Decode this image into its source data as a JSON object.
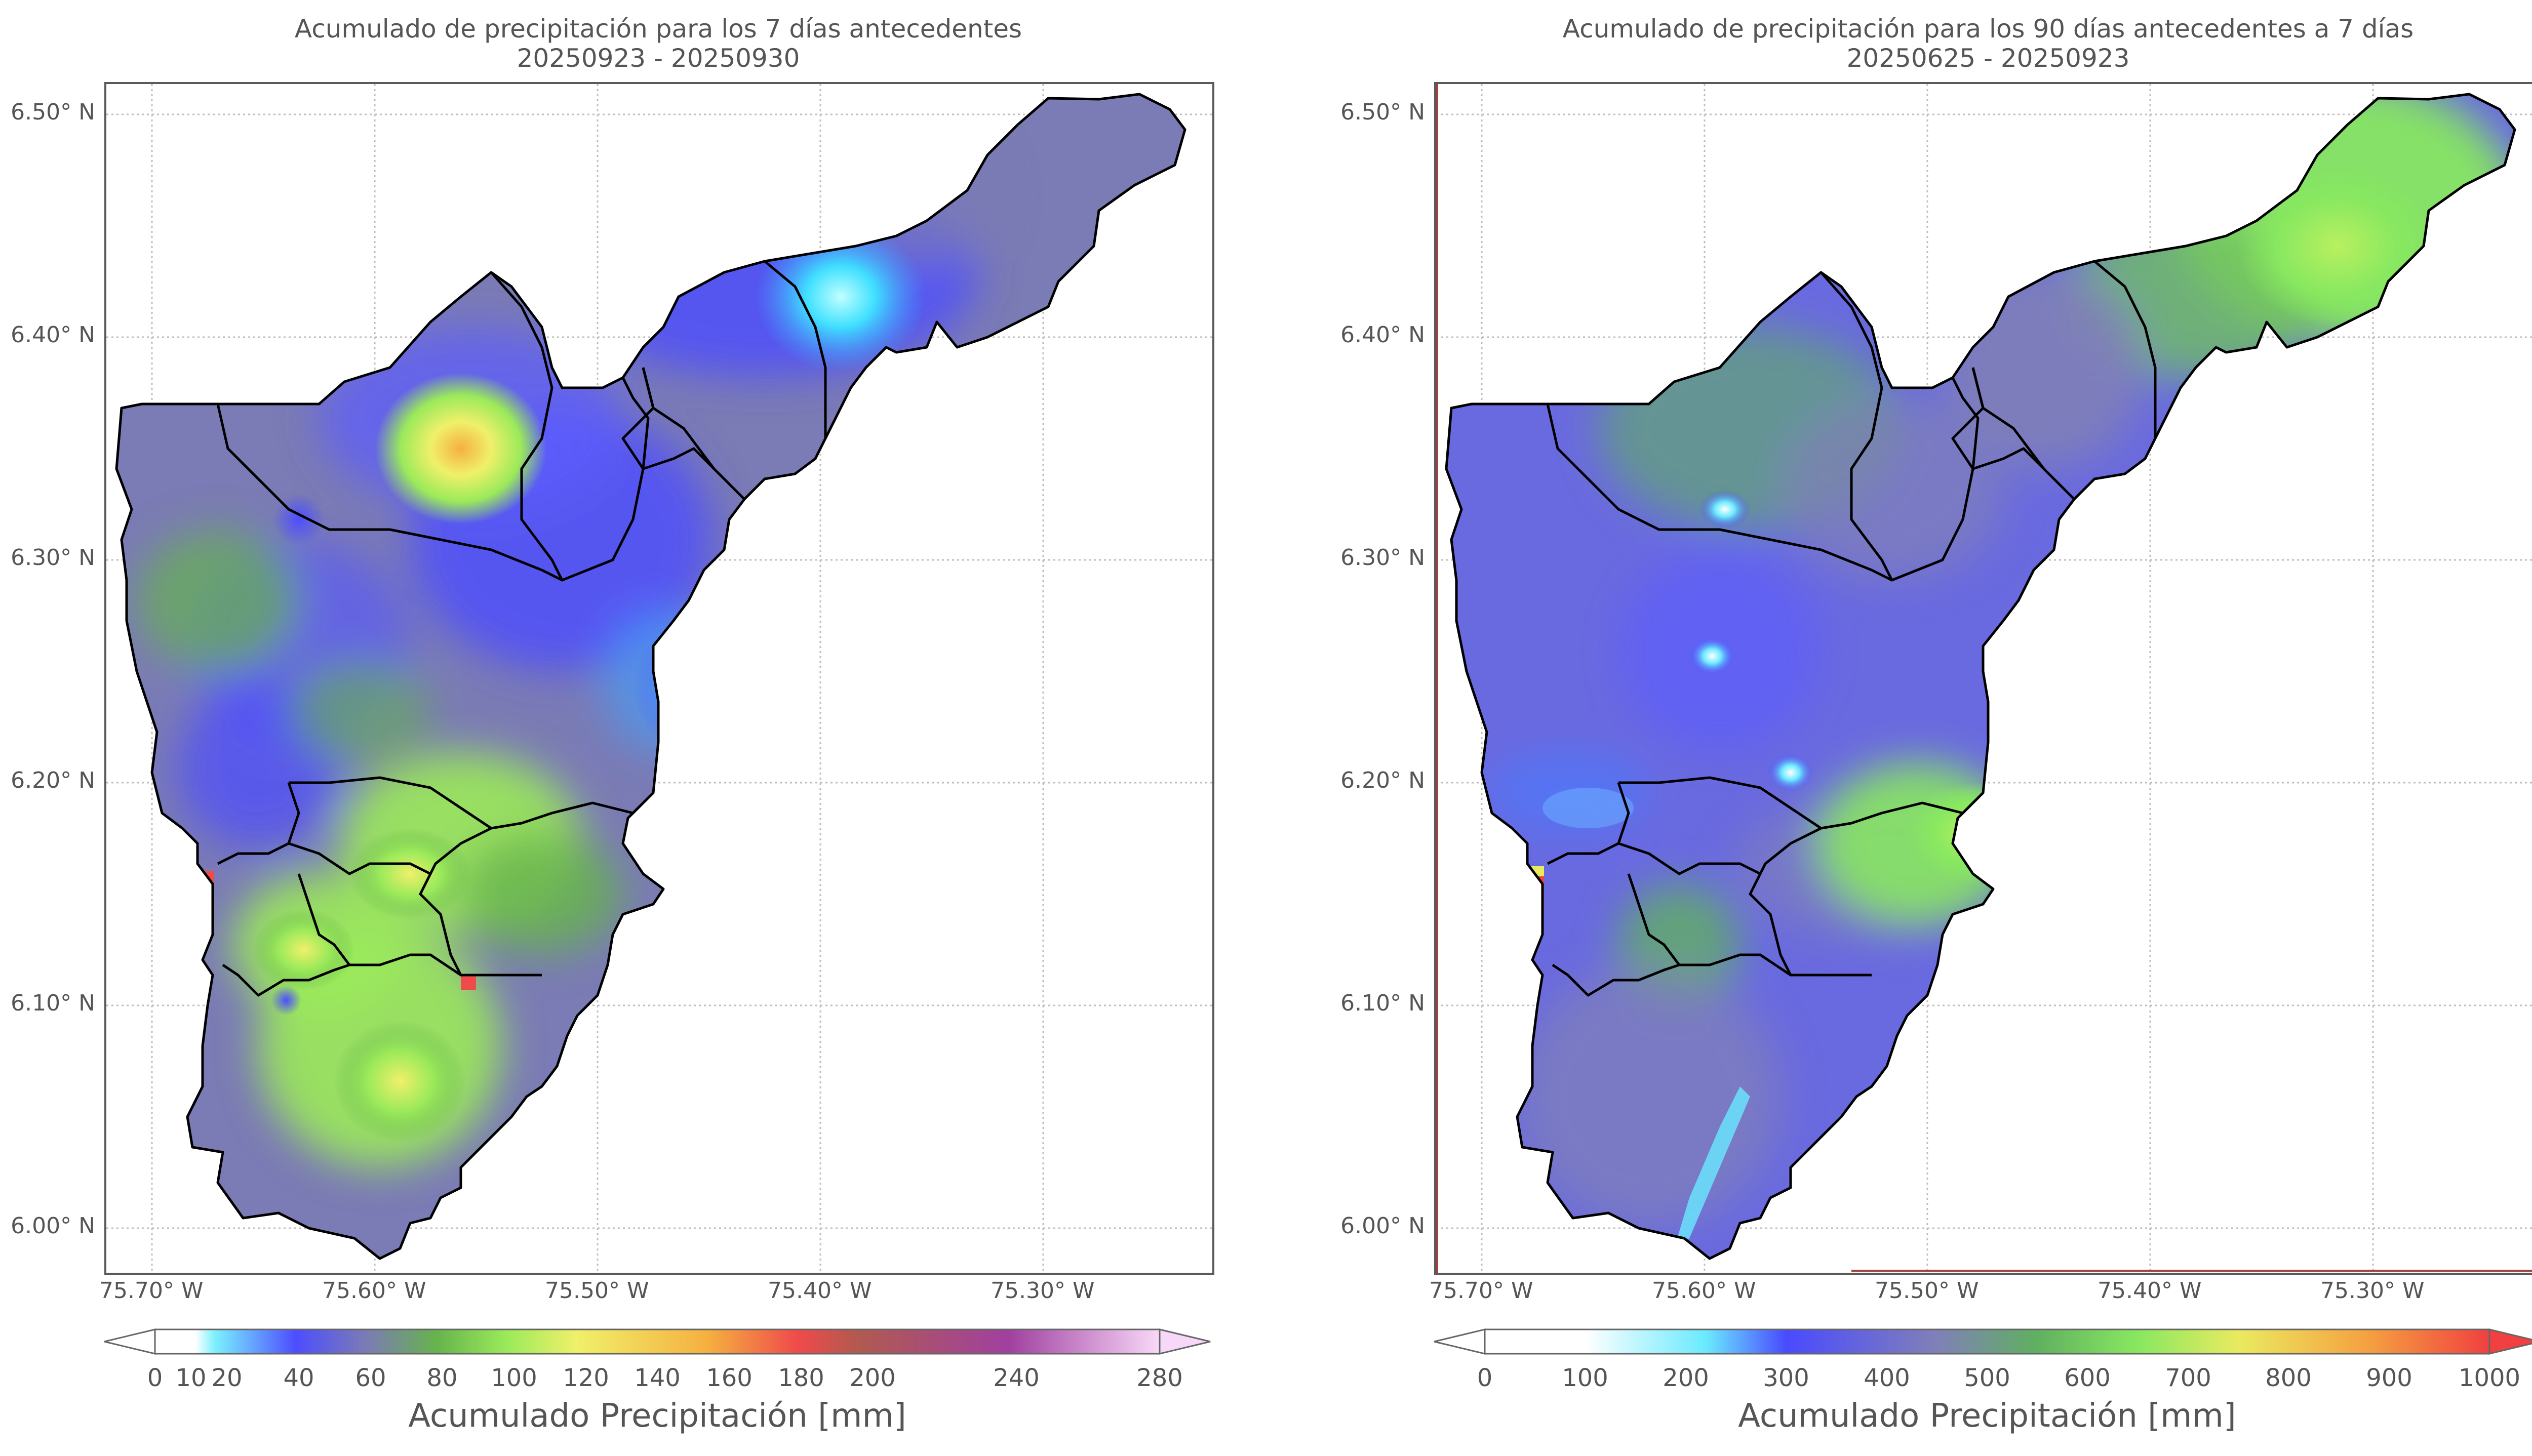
{
  "colors": {
    "boundary": "#000000",
    "grid": "#bdbdbd",
    "frame": "#5a5a5a",
    "ramp7": [
      "#ffffff",
      "#7af0ff",
      "#4d4dff",
      "#7b7bb5",
      "#66b34d",
      "#9bea5a",
      "#f0f06a",
      "#f5b040",
      "#f04a4a",
      "#b05a50",
      "#a040a0",
      "#f8d8f8"
    ],
    "ramp90": [
      "#ffffff",
      "#6aeaff",
      "#4a4aff",
      "#8080b8",
      "#60b060",
      "#88e860",
      "#eaea60",
      "#f5a040",
      "#f04040"
    ]
  },
  "left": {
    "title_line1": "Acumulado de precipitación para los 7 días antecedentes",
    "title_line2": "20250923 - 20250930",
    "colorbar_title": "Acumulado Precipitación [mm]",
    "colorbar_ticks": [
      "0",
      "10",
      "20",
      "40",
      "60",
      "80",
      "100",
      "120",
      "140",
      "160",
      "180",
      "200",
      "240",
      "280"
    ]
  },
  "right": {
    "title_line1": "Acumulado de precipitación para los 90 días antecedentes a 7 días",
    "title_line2": "20250625 - 20250923",
    "colorbar_title": "Acumulado Precipitación [mm]",
    "colorbar_ticks": [
      "0",
      "100",
      "200",
      "300",
      "400",
      "500",
      "600",
      "700",
      "800",
      "900",
      "1000"
    ]
  },
  "axes": {
    "lat_labels": [
      "6.50° N",
      "6.40° N",
      "6.30° N",
      "6.20° N",
      "6.10° N",
      "6.00° N"
    ],
    "lon_labels": [
      "75.70° W",
      "75.60° W",
      "75.50° W",
      "75.40° W",
      "75.30° W"
    ]
  }
}
